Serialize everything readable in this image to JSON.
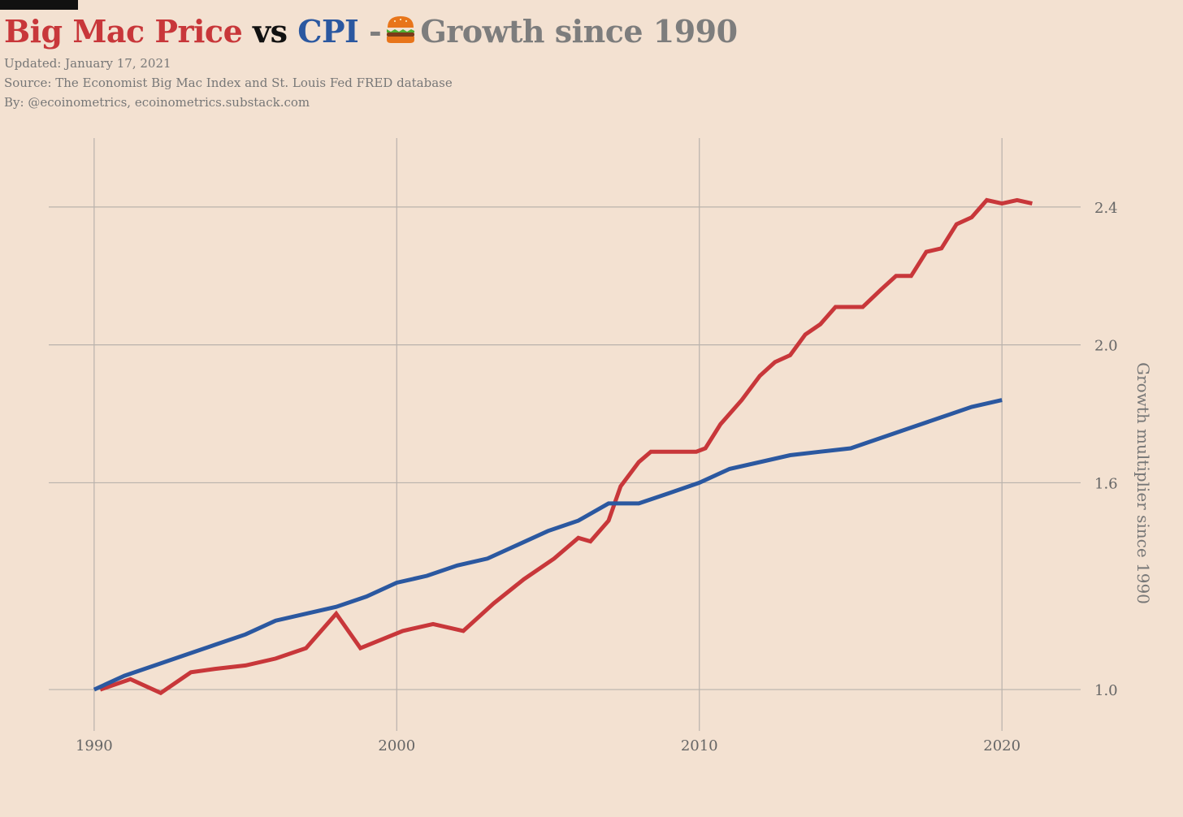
{
  "header": {
    "title_part1": "Big Mac Price",
    "title_part2": "vs",
    "title_part3": "CPI",
    "title_part4": "-",
    "title_part5": "Growth since 1990",
    "title_icon": "burger-icon",
    "updated": "Updated: January 17, 2021",
    "source": "Source: The Economist Big Mac Index and St. Louis Fed FRED database",
    "by": "By: @ecoinometrics, ecoinometrics.substack.com"
  },
  "colors": {
    "background": "#f3e1d1",
    "big_mac": "#c8373a",
    "cpi": "#2b58a0",
    "grid": "#b9b2ac",
    "text_grey": "#7d7d7d"
  },
  "chart_data": {
    "type": "line",
    "title": "Big Mac Price vs CPI - Growth since 1990",
    "xlabel": "",
    "ylabel": "Growth multiplier since 1990",
    "xlim": [
      1988.5,
      2022.6
    ],
    "ylim": [
      0.88,
      2.6
    ],
    "x_ticks": [
      1990,
      2000,
      2010,
      2020
    ],
    "x_tick_labels": [
      "1990",
      "2000",
      "2010",
      "2020"
    ],
    "y_ticks": [
      1.0,
      1.6,
      2.0,
      2.4
    ],
    "y_tick_labels": [
      "1.0",
      "1.6",
      "2.0",
      "2.4"
    ],
    "y_axis_side": "right",
    "grid": true,
    "legend": "none (series named by colored title words)",
    "series": [
      {
        "name": "Big Mac Price",
        "color": "#c8373a",
        "x": [
          1990.2,
          1991.2,
          1992.2,
          1993.2,
          1994.0,
          1995.0,
          1996.0,
          1997.0,
          1998.0,
          1998.8,
          2000.2,
          2001.2,
          2002.2,
          2003.2,
          2004.2,
          2005.2,
          2006.0,
          2006.4,
          2007.0,
          2007.4,
          2008.0,
          2008.4,
          2009.0,
          2009.4,
          2009.9,
          2010.2,
          2010.7,
          2011.4,
          2012.0,
          2012.5,
          2013.0,
          2013.5,
          2014.0,
          2014.5,
          2015.0,
          2015.4,
          2016.0,
          2016.5,
          2017.0,
          2017.5,
          2018.0,
          2018.5,
          2019.0,
          2019.5,
          2020.0,
          2020.5,
          2021.0
        ],
        "values": [
          1.0,
          1.03,
          0.99,
          1.05,
          1.06,
          1.07,
          1.09,
          1.12,
          1.22,
          1.12,
          1.17,
          1.19,
          1.17,
          1.25,
          1.32,
          1.38,
          1.44,
          1.43,
          1.49,
          1.59,
          1.66,
          1.69,
          1.69,
          1.69,
          1.69,
          1.7,
          1.77,
          1.84,
          1.91,
          1.95,
          1.97,
          2.03,
          2.06,
          2.11,
          2.11,
          2.11,
          2.16,
          2.2,
          2.2,
          2.27,
          2.28,
          2.35,
          2.37,
          2.42,
          2.41,
          2.42,
          2.41
        ]
      },
      {
        "name": "CPI",
        "color": "#2b58a0",
        "x": [
          1990,
          1991,
          1992,
          1993,
          1994,
          1995,
          1996,
          1997,
          1998,
          1999,
          2000,
          2001,
          2002,
          2003,
          2004,
          2005,
          2006,
          2007,
          2008,
          2009,
          2010,
          2011,
          2012,
          2013,
          2014,
          2015,
          2016,
          2017,
          2018,
          2019,
          2020
        ],
        "values": [
          1.0,
          1.04,
          1.07,
          1.1,
          1.13,
          1.16,
          1.2,
          1.22,
          1.24,
          1.27,
          1.31,
          1.33,
          1.36,
          1.38,
          1.42,
          1.46,
          1.49,
          1.54,
          1.54,
          1.57,
          1.6,
          1.64,
          1.66,
          1.68,
          1.69,
          1.7,
          1.73,
          1.76,
          1.79,
          1.82,
          1.84
        ]
      }
    ]
  }
}
